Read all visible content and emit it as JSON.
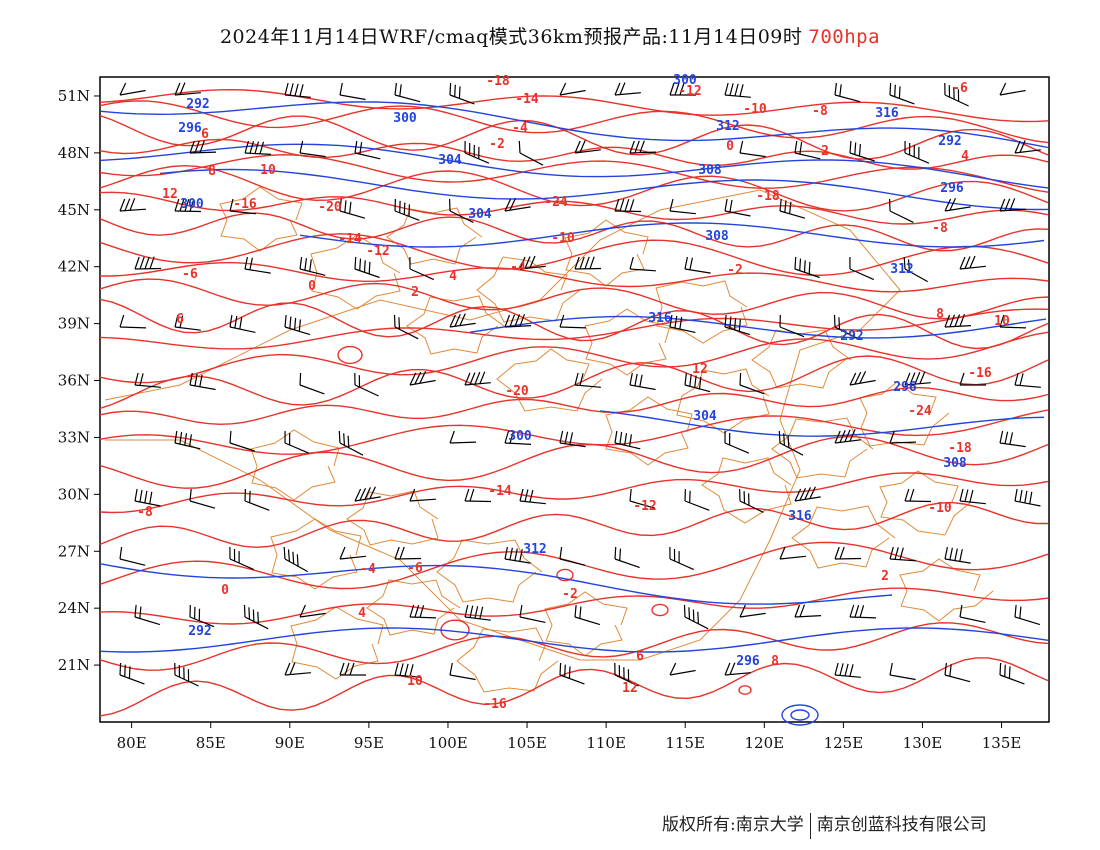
{
  "title": {
    "main": "2024年11月14日WRF/cmaq模式36km预报产品:11月14日09时",
    "level": "700hpa",
    "level_color": "#e8322a"
  },
  "map": {
    "lon_ticks": [
      "80E",
      "85E",
      "90E",
      "95E",
      "100E",
      "105E",
      "110E",
      "115E",
      "120E",
      "125E",
      "130E",
      "135E"
    ],
    "lat_ticks": [
      "51N",
      "48N",
      "45N",
      "42N",
      "39N",
      "36N",
      "33N",
      "30N",
      "27N",
      "24N",
      "21N"
    ],
    "lon_range": [
      78,
      138
    ],
    "lat_range": [
      18,
      52
    ],
    "temperature_labels": [
      "-18",
      "-14",
      "-12",
      "-10",
      "-8",
      "-6",
      "-4",
      "-2",
      "0",
      "2",
      "4",
      "6",
      "8",
      "10",
      "12",
      "-16",
      "-20",
      "-24"
    ],
    "height_labels": [
      "292",
      "296",
      "300",
      "304",
      "308",
      "312",
      "316"
    ],
    "colors": {
      "temperature": "#e8322a",
      "height": "#2244dd",
      "border": "#e08a3a",
      "wind": "#000000"
    }
  },
  "footer": {
    "copyright": "版权所有:南京大学",
    "company": "南京创蓝科技有限公司"
  }
}
